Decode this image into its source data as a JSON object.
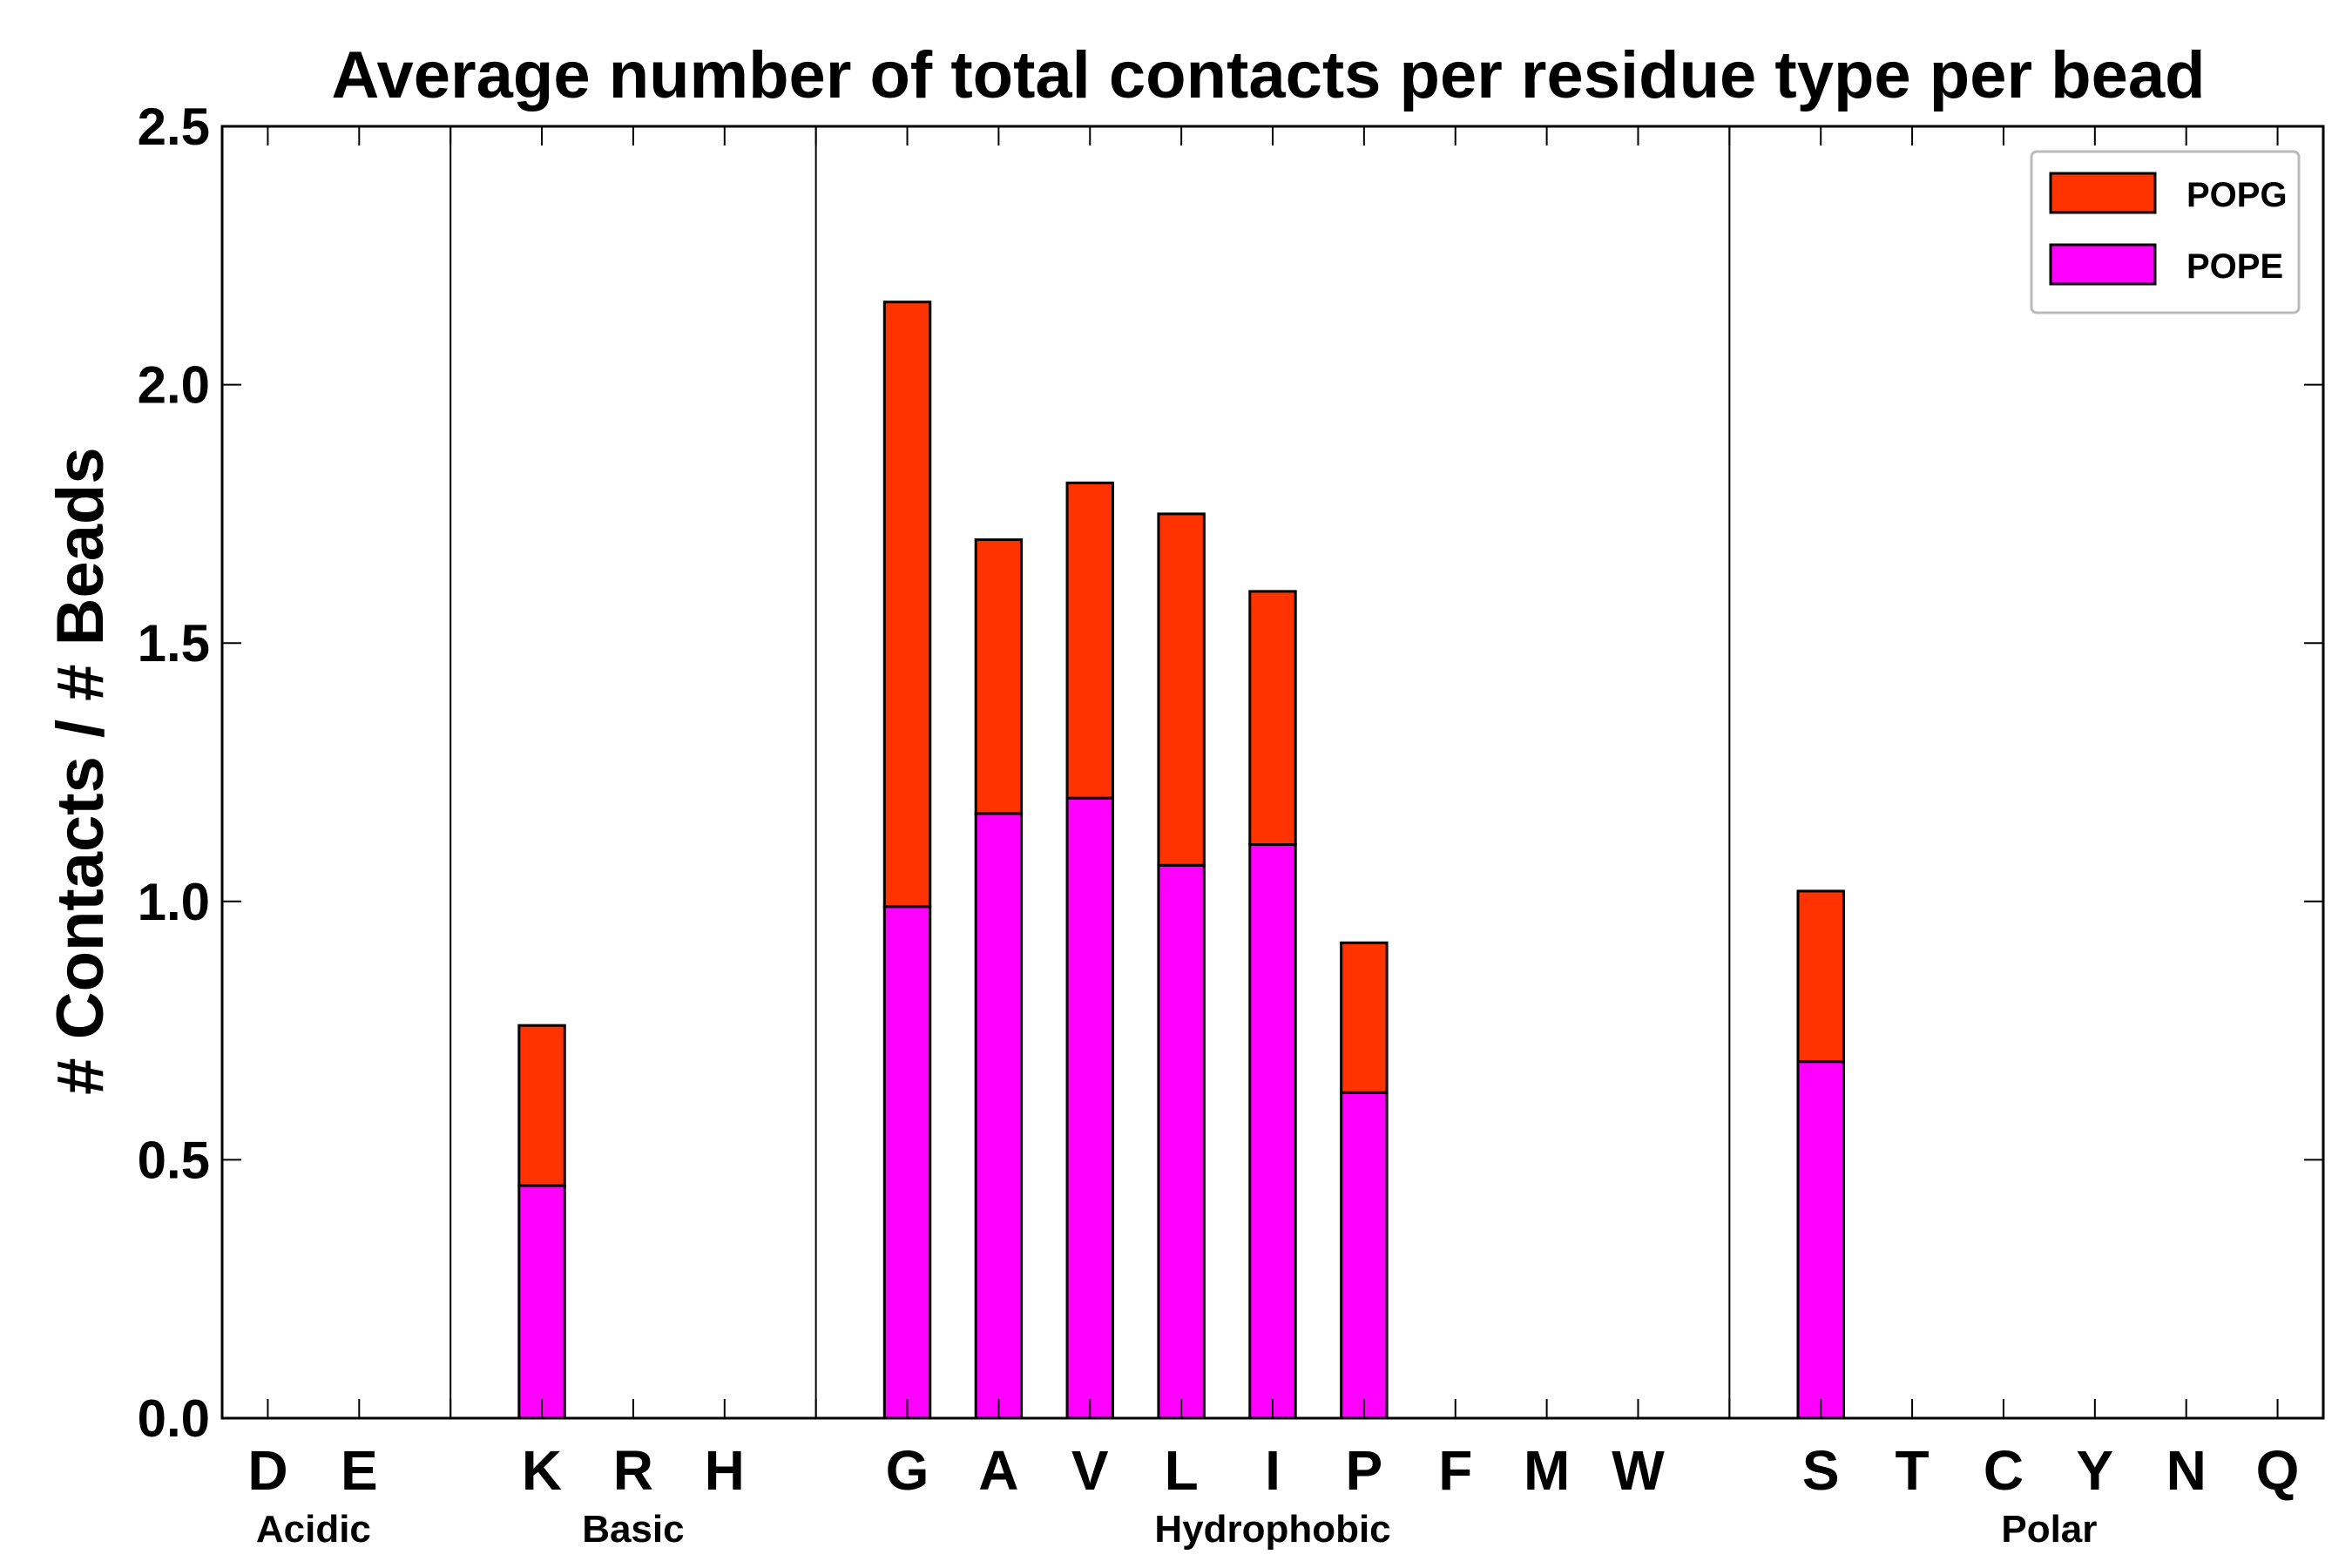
{
  "chart_data": {
    "type": "bar",
    "stacked": true,
    "title": "Average number of total contacts per residue type per bead",
    "xlabel": "",
    "ylabel": "# Contacts / # Beads",
    "ylim": [
      0,
      2.5
    ],
    "yticks": [
      "0.0",
      "0.5",
      "1.0",
      "1.5",
      "2.0",
      "2.5"
    ],
    "categories": [
      "D",
      "E",
      "",
      "K",
      "R",
      "H",
      "",
      "G",
      "A",
      "V",
      "L",
      "I",
      "P",
      "F",
      "M",
      "W",
      "",
      "S",
      "T",
      "C",
      "Y",
      "N",
      "Q"
    ],
    "groups": [
      {
        "name": "Acidic",
        "members": [
          "D",
          "E"
        ]
      },
      {
        "name": "Basic",
        "members": [
          "K",
          "R",
          "H"
        ]
      },
      {
        "name": "Hydrophobic",
        "members": [
          "G",
          "A",
          "V",
          "L",
          "I",
          "P",
          "F",
          "M",
          "W"
        ]
      },
      {
        "name": "Polar",
        "members": [
          "S",
          "T",
          "C",
          "Y",
          "N",
          "Q"
        ]
      }
    ],
    "series": [
      {
        "name": "POPE",
        "color": "#ff00ff",
        "values": [
          0,
          0,
          0,
          0.45,
          0,
          0,
          0,
          0.99,
          1.17,
          1.2,
          1.07,
          1.11,
          0.63,
          0,
          0,
          0,
          0,
          0.69,
          0,
          0,
          0,
          0,
          0
        ]
      },
      {
        "name": "POPG",
        "color": "#ff3300",
        "values": [
          0,
          0,
          0,
          0.31,
          0,
          0,
          0,
          1.17,
          0.53,
          0.61,
          0.68,
          0.49,
          0.29,
          0,
          0,
          0,
          0,
          0.33,
          0,
          0,
          0,
          0,
          0
        ]
      }
    ],
    "legend": {
      "position": "top-right",
      "entries": [
        "POPG",
        "POPE"
      ]
    }
  }
}
